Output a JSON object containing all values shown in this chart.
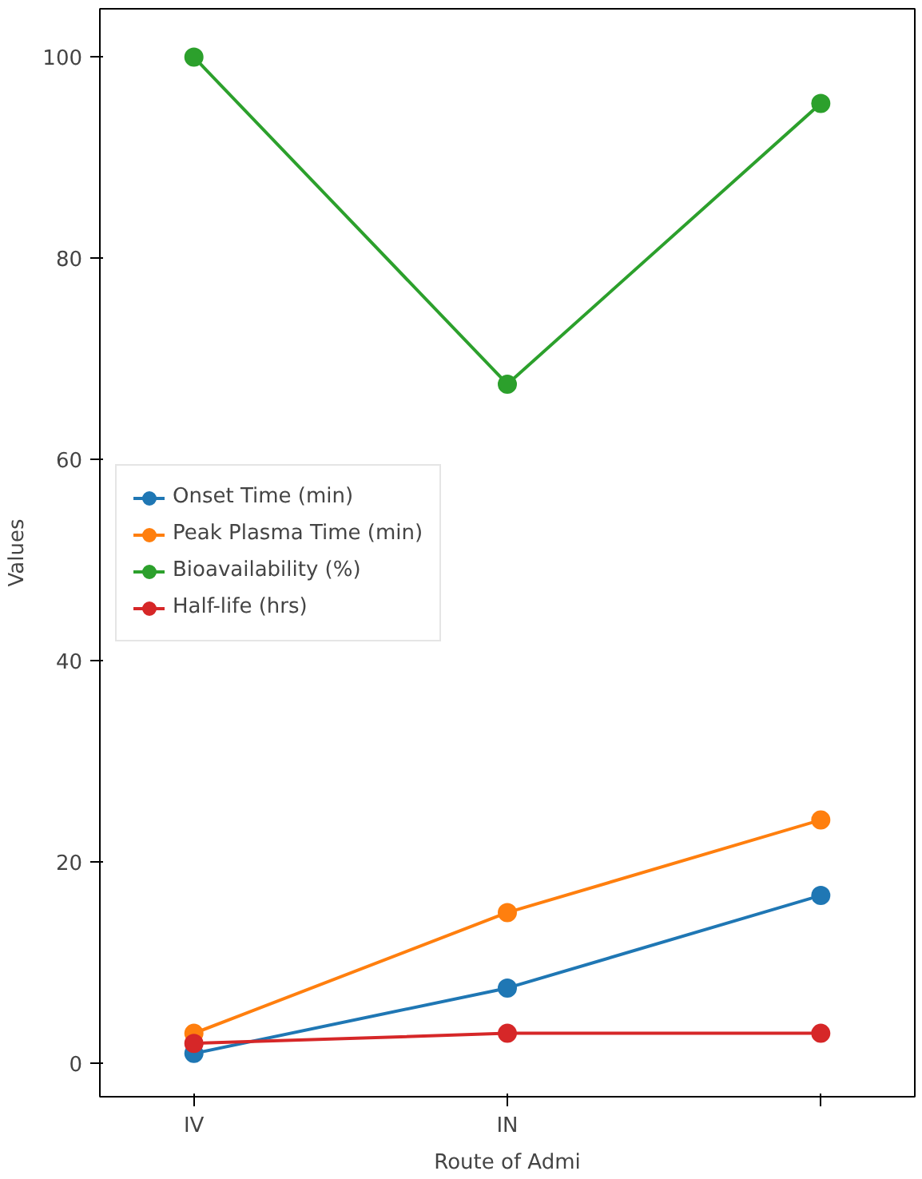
{
  "chart_data": {
    "type": "line",
    "xlabel": "Route of Admi",
    "ylabel": "Values",
    "categories": [
      "IV",
      "IN",
      null
    ],
    "series": [
      {
        "name": "Onset Time (min)",
        "color": "#1f77b4",
        "values": [
          1,
          7.5,
          16.7
        ]
      },
      {
        "name": "Peak Plasma Time (min)",
        "color": "#ff7f0e",
        "values": [
          3,
          15,
          24.2
        ]
      },
      {
        "name": "Bioavailability (%)",
        "color": "#2ca02c",
        "values": [
          100,
          67.5,
          95.4
        ]
      },
      {
        "name": "Half-life (hrs)",
        "color": "#d62728",
        "values": [
          2,
          3,
          3
        ]
      }
    ],
    "ylim": [
      -3.3,
      104.8
    ],
    "yticks": [
      0,
      20,
      40,
      60,
      80,
      100
    ],
    "marker": "circle",
    "line_style": "solid",
    "grid": false,
    "legend": "left"
  }
}
